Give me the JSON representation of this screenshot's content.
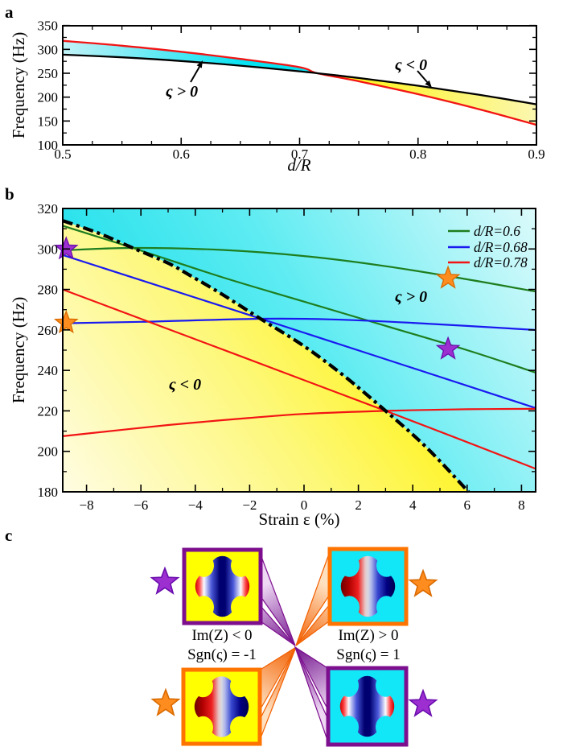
{
  "panel_letters": {
    "a": "a",
    "b": "b",
    "c": "c"
  },
  "panel_a": {
    "ylabel": "Frequency (Hz)",
    "xlabel": "d/R",
    "ann_pos": "ς > 0",
    "ann_neg": "ς < 0",
    "yticks": [
      100,
      150,
      200,
      250,
      300,
      350
    ],
    "yticks_minor": [
      125,
      175,
      225,
      275,
      325
    ],
    "xticks": [
      0.5,
      0.6,
      0.7,
      0.8,
      0.9
    ],
    "xticks_minor": [
      0.525,
      0.55,
      0.575,
      0.625,
      0.65,
      0.675,
      0.725,
      0.75,
      0.775,
      0.825,
      0.85,
      0.875
    ]
  },
  "panel_b": {
    "ylabel": "Frequency (Hz)",
    "xlabel": "Strain ε (%)",
    "ann_pos": "ς > 0",
    "ann_neg": "ς < 0",
    "yticks": [
      180,
      200,
      220,
      240,
      260,
      280,
      300,
      320
    ],
    "yticks_minor": [
      190,
      210,
      230,
      250,
      270,
      290,
      310
    ],
    "xticks": [
      -8,
      -6,
      -4,
      -2,
      0,
      2,
      4,
      6,
      8
    ],
    "xticks_minor": [
      -7,
      -5,
      -3,
      -1,
      1,
      3,
      5,
      7
    ],
    "legend": [
      {
        "label": "d/R=0.6",
        "color": "#1e7d1e"
      },
      {
        "label": "d/R=0.68",
        "color": "#1a1af0"
      },
      {
        "label": "d/R=0.78",
        "color": "#f21414"
      }
    ]
  },
  "panel_c": {
    "im_neg": "Im(Z) < 0",
    "sgn_neg": "Sgn(ς) = -1",
    "im_pos": "Im(Z) > 0",
    "sgn_pos": "Sgn(ς) = 1"
  },
  "colors": {
    "accent_cyan": "#00e0ee",
    "accent_yellow": "#fff200",
    "curve_green": "#1e7d1e",
    "curve_blue": "#1a1af0",
    "curve_red": "#f21414",
    "star_purple": "#9d2fd1",
    "star_purple_edge": "#6a0dad",
    "star_orange": "#ff8c1e",
    "star_orange_edge": "#d96a00",
    "border_purple": "#7d0f8f",
    "border_orange": "#ff7300",
    "square_yellow": "#ffff00",
    "square_cyan": "#12e7f7"
  },
  "chart_data": [
    {
      "panel": "a",
      "type": "line",
      "xlabel": "d/R",
      "ylabel": "Frequency (Hz)",
      "xlim": [
        0.5,
        0.9
      ],
      "ylim": [
        100,
        350
      ],
      "grid": false,
      "crossing": {
        "x": 0.715,
        "f": 250
      },
      "series": [
        {
          "name": "upper-branch-red",
          "color": "#f21414",
          "width": 2.3,
          "x": [
            0.5,
            0.55,
            0.6,
            0.65,
            0.7,
            0.715,
            0.75,
            0.8,
            0.85,
            0.9
          ],
          "y": [
            318,
            307.7,
            295,
            280,
            262.7,
            250,
            233.1,
            206.1,
            175.7,
            142
          ]
        },
        {
          "name": "lower-branch-black",
          "color": "#000000",
          "width": 2.3,
          "x": [
            0.5,
            0.55,
            0.6,
            0.65,
            0.7,
            0.715,
            0.75,
            0.8,
            0.85,
            0.9
          ],
          "y": [
            289,
            283.4,
            275.7,
            265.9,
            254,
            250,
            240,
            223.8,
            205.5,
            185
          ]
        }
      ],
      "regions": [
        {
          "name": "ς > 0",
          "color": "cyan",
          "x_range": [
            0.5,
            0.715
          ]
        },
        {
          "name": "ς < 0",
          "color": "yellow",
          "x_range": [
            0.715,
            0.9
          ]
        }
      ]
    },
    {
      "panel": "b",
      "type": "line",
      "xlabel": "Strain ε (%)",
      "ylabel": "Frequency (Hz)",
      "xlim": [
        -8.9,
        8.5
      ],
      "ylim": [
        180,
        320
      ],
      "grid": false,
      "legend_position": "top-right",
      "boundary": {
        "name": "phase-boundary-dash-dot",
        "color": "#000000",
        "width": 4.2,
        "x": [
          -8.88,
          -7.5,
          -6.3,
          -5,
          -4.2,
          -3,
          -1.6,
          0,
          1.5,
          3,
          4.5,
          6.05
        ],
        "y": [
          314,
          307.5,
          300.5,
          293,
          287,
          277.5,
          265.5,
          252,
          237,
          220,
          202,
          180
        ]
      },
      "series": [
        {
          "name": "d/R=0.6 flat branch",
          "color": "#1e7d1e",
          "width": 2.2,
          "x": [
            -8.88,
            -6.3,
            -3,
            0,
            3,
            6,
            8.5
          ],
          "y": [
            299.3,
            300.5,
            299.5,
            296.5,
            291.5,
            285,
            279
          ]
        },
        {
          "name": "d/R=0.6 steep branch",
          "color": "#1e7d1e",
          "width": 2.2,
          "x": [
            -8.88,
            -6.3,
            -3,
            0,
            3,
            6,
            8.5
          ],
          "y": [
            311.5,
            300.5,
            286,
            274,
            262,
            250,
            239
          ]
        },
        {
          "name": "d/R=0.68 flat branch",
          "color": "#1a1af0",
          "width": 2.2,
          "x": [
            -8.88,
            -6,
            -1.6,
            1,
            4,
            8.5
          ],
          "y": [
            263.3,
            264,
            265.5,
            265.2,
            263.5,
            260
          ]
        },
        {
          "name": "d/R=0.68 steep branch",
          "color": "#1a1af0",
          "width": 2.2,
          "x": [
            -8.88,
            -1.6,
            8.5
          ],
          "y": [
            297,
            265.6,
            221.5
          ]
        },
        {
          "name": "d/R=0.78 flat branch",
          "color": "#f21414",
          "width": 2.2,
          "x": [
            -8.88,
            -5,
            -2,
            0,
            3,
            6,
            8.5
          ],
          "y": [
            207.5,
            213,
            216.5,
            218.5,
            220,
            220.8,
            221
          ]
        },
        {
          "name": "d/R=0.78 steep branch",
          "color": "#f21414",
          "width": 2.2,
          "x": [
            -8.88,
            3,
            8.5
          ],
          "y": [
            280,
            220,
            191.5
          ]
        }
      ],
      "stars": [
        {
          "color": "purple",
          "x": -8.75,
          "y": 300
        },
        {
          "color": "orange",
          "x": -8.75,
          "y": 263.5
        },
        {
          "color": "orange",
          "x": 5.3,
          "y": 285.5
        },
        {
          "color": "purple",
          "x": 5.3,
          "y": 250.5
        }
      ]
    }
  ]
}
